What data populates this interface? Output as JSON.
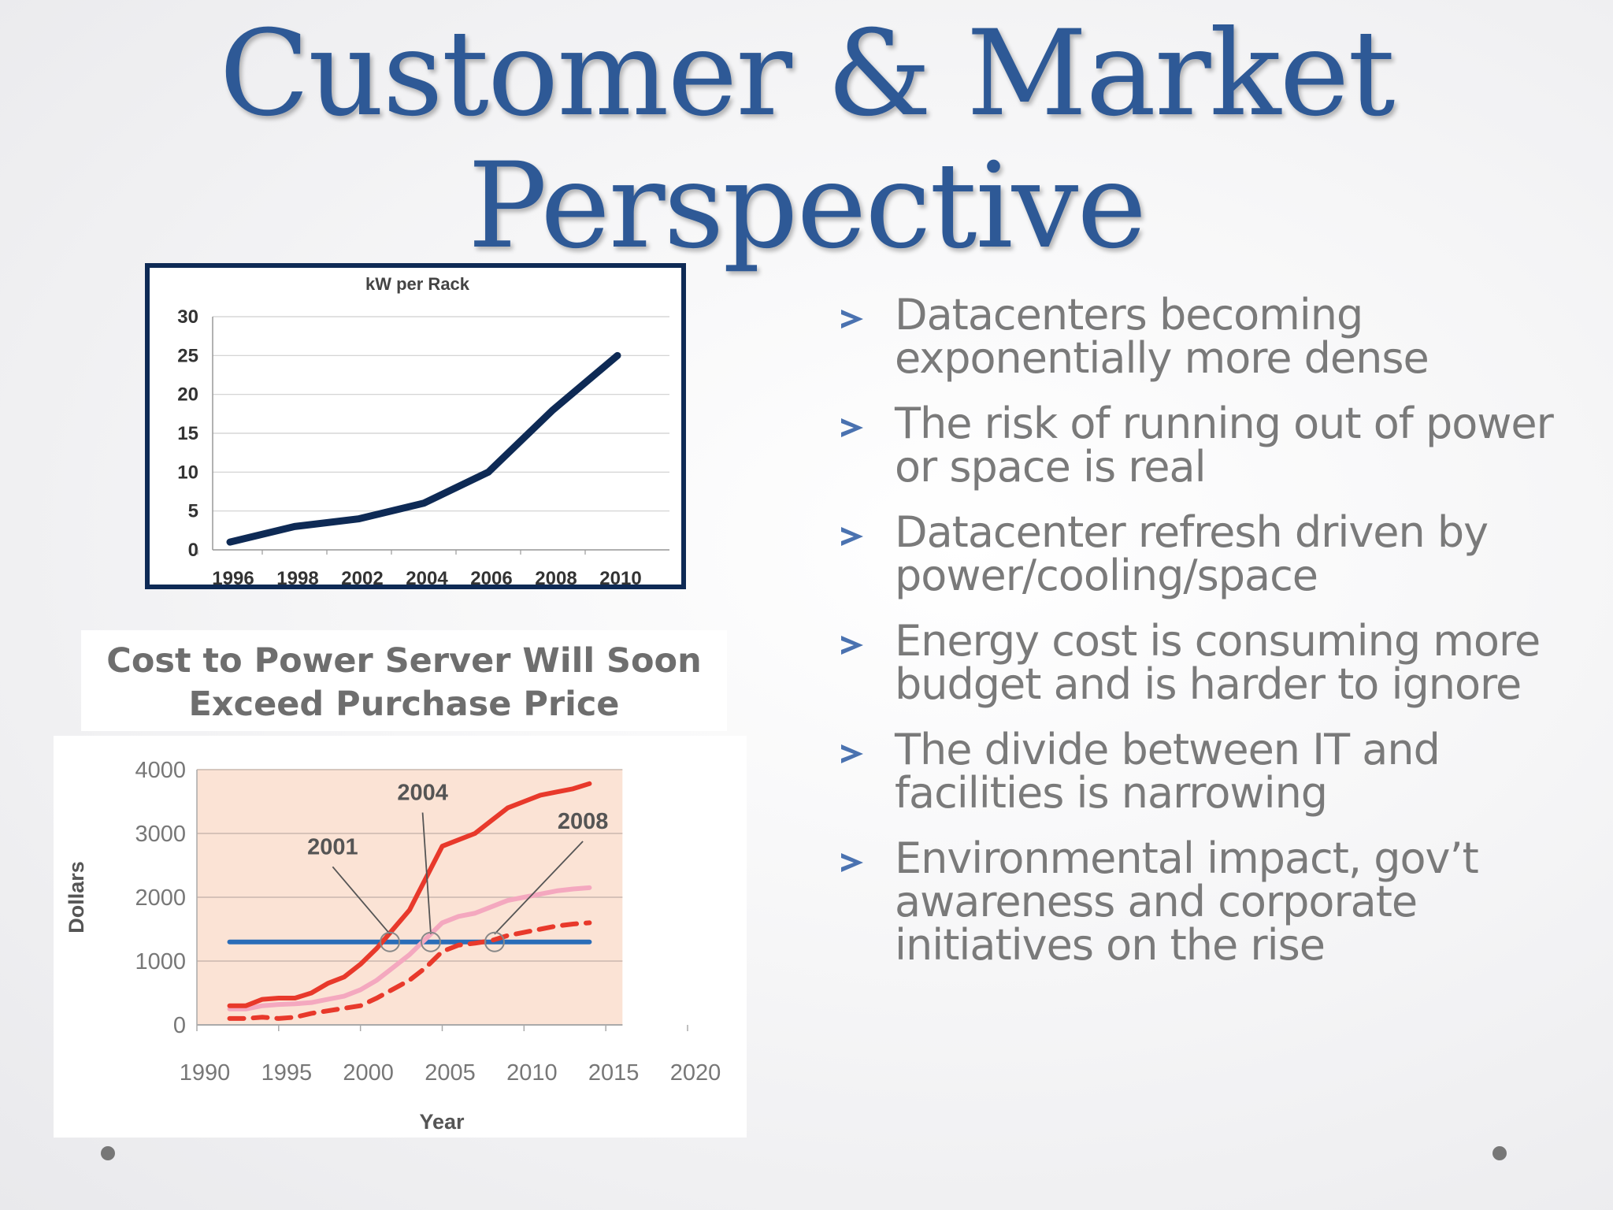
{
  "slide": {
    "title_line1": "Customer & Market",
    "title_line2": "Perspective",
    "bullets": [
      "Datacenters becoming exponentially more dense",
      "The risk of running out of power or space is real",
      "Datacenter refresh driven by power/cooling/space",
      "Energy cost is consuming more budget and is harder to ignore",
      "The divide between IT and facilities is narrowing",
      "Environmental impact, gov’t awareness and corporate initiatives on the rise"
    ],
    "colors": {
      "title": "#2e5996",
      "bullet_text": "#7a7a7a",
      "bullet_marker": "#4a72b0",
      "chart1_line": "#0e2a55",
      "chart2_power_high": "#e8392b",
      "chart2_power_mid": "#f4a8bf",
      "chart2_power_low": "#e8392b",
      "chart2_purchase": "#2a6db8",
      "chart2_plot_bg": "#fbe3d5"
    }
  },
  "chart_data": [
    {
      "type": "line",
      "title": "kW per Rack",
      "categories": [
        "1996",
        "1998",
        "2002",
        "2004",
        "2006",
        "2008",
        "2010"
      ],
      "values": [
        1,
        3,
        4,
        6,
        10,
        18,
        25
      ],
      "yticks": [
        0,
        5,
        10,
        15,
        20,
        25,
        30
      ],
      "ylim": [
        0,
        30
      ],
      "grid": true,
      "legend": "none"
    },
    {
      "type": "line",
      "title": "Cost to Power Server Will Soon Exceed Purchase Price",
      "xlabel": "Year",
      "ylabel": "Dollars",
      "xlim": [
        1990,
        2020
      ],
      "ylim": [
        0,
        4000
      ],
      "xticks": [
        1990,
        1995,
        2000,
        2005,
        2010,
        2015,
        2020
      ],
      "yticks": [
        0,
        1000,
        2000,
        3000,
        4000
      ],
      "grid": true,
      "legend": "none",
      "series": [
        {
          "style": "solid",
          "x": [
            1992,
            1993,
            1994,
            1995,
            1996,
            1997,
            1998,
            1999,
            2000,
            2001,
            2002,
            2003,
            2004,
            2005,
            2006,
            2007,
            2008,
            2009,
            2010,
            2011,
            2012,
            2013,
            2014
          ],
          "values": [
            300,
            300,
            400,
            420,
            420,
            500,
            650,
            750,
            950,
            1200,
            1500,
            1800,
            2300,
            2800,
            2900,
            3000,
            3200,
            3400,
            3500,
            3600,
            3650,
            3700,
            3780
          ]
        },
        {
          "style": "solid",
          "x": [
            1992,
            1993,
            1994,
            1995,
            1996,
            1997,
            1998,
            1999,
            2000,
            2001,
            2002,
            2003,
            2004,
            2005,
            2006,
            2007,
            2008,
            2009,
            2010,
            2011,
            2012,
            2013,
            2014
          ],
          "values": [
            250,
            250,
            300,
            320,
            330,
            350,
            400,
            450,
            550,
            700,
            900,
            1100,
            1350,
            1600,
            1700,
            1750,
            1850,
            1950,
            2000,
            2050,
            2100,
            2130,
            2150
          ]
        },
        {
          "style": "dashed",
          "x": [
            1992,
            1993,
            1994,
            1995,
            1996,
            1997,
            1998,
            1999,
            2000,
            2001,
            2002,
            2003,
            2004,
            2005,
            2006,
            2007,
            2008,
            2009,
            2010,
            2011,
            2012,
            2013,
            2014
          ],
          "values": [
            100,
            100,
            120,
            100,
            120,
            180,
            220,
            260,
            300,
            420,
            560,
            700,
            900,
            1150,
            1250,
            1280,
            1320,
            1400,
            1450,
            1500,
            1550,
            1580,
            1600
          ]
        },
        {
          "style": "solid",
          "x": [
            1992,
            2014
          ],
          "values": [
            1300,
            1300
          ]
        }
      ],
      "annotations": [
        {
          "label": "2001",
          "x": 2001.8,
          "y": 1300
        },
        {
          "label": "2004",
          "x": 2004.3,
          "y": 1300
        },
        {
          "label": "2008",
          "x": 2008.2,
          "y": 1300
        }
      ]
    }
  ]
}
